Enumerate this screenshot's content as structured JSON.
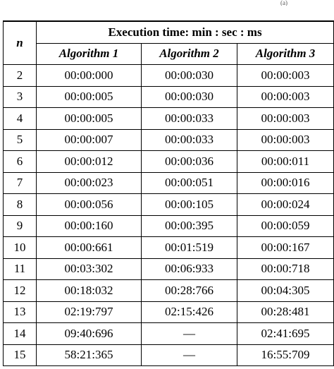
{
  "corner_fragment": "(a)",
  "table": {
    "header": {
      "n_label": "n",
      "group_label": "Execution time: min : sec : ms",
      "algorithms": [
        "Algorithm 1",
        "Algorithm 2",
        "Algorithm 3"
      ]
    },
    "rows": [
      {
        "n": "2",
        "a1": "00:00:000",
        "a2": "00:00:030",
        "a3": "00:00:003"
      },
      {
        "n": "3",
        "a1": "00:00:005",
        "a2": "00:00:030",
        "a3": "00:00:003"
      },
      {
        "n": "4",
        "a1": "00:00:005",
        "a2": "00:00:033",
        "a3": "00:00:003"
      },
      {
        "n": "5",
        "a1": "00:00:007",
        "a2": "00:00:033",
        "a3": "00:00:003"
      },
      {
        "n": "6",
        "a1": "00:00:012",
        "a2": "00:00:036",
        "a3": "00:00:011"
      },
      {
        "n": "7",
        "a1": "00:00:023",
        "a2": "00:00:051",
        "a3": "00:00:016"
      },
      {
        "n": "8",
        "a1": "00:00:056",
        "a2": "00:00:105",
        "a3": "00:00:024"
      },
      {
        "n": "9",
        "a1": "00:00:160",
        "a2": "00:00:395",
        "a3": "00:00:059"
      },
      {
        "n": "10",
        "a1": "00:00:661",
        "a2": "00:01:519",
        "a3": "00:00:167"
      },
      {
        "n": "11",
        "a1": "00:03:302",
        "a2": "00:06:933",
        "a3": "00:00:718"
      },
      {
        "n": "12",
        "a1": "00:18:032",
        "a2": "00:28:766",
        "a3": "00:04:305"
      },
      {
        "n": "13",
        "a1": "02:19:797",
        "a2": "02:15:426",
        "a3": "00:28:481"
      },
      {
        "n": "14",
        "a1": "09:40:696",
        "a2": "—",
        "a3": "02:41:695"
      },
      {
        "n": "15",
        "a1": "58:21:365",
        "a2": "—",
        "a3": "16:55:709"
      }
    ]
  }
}
